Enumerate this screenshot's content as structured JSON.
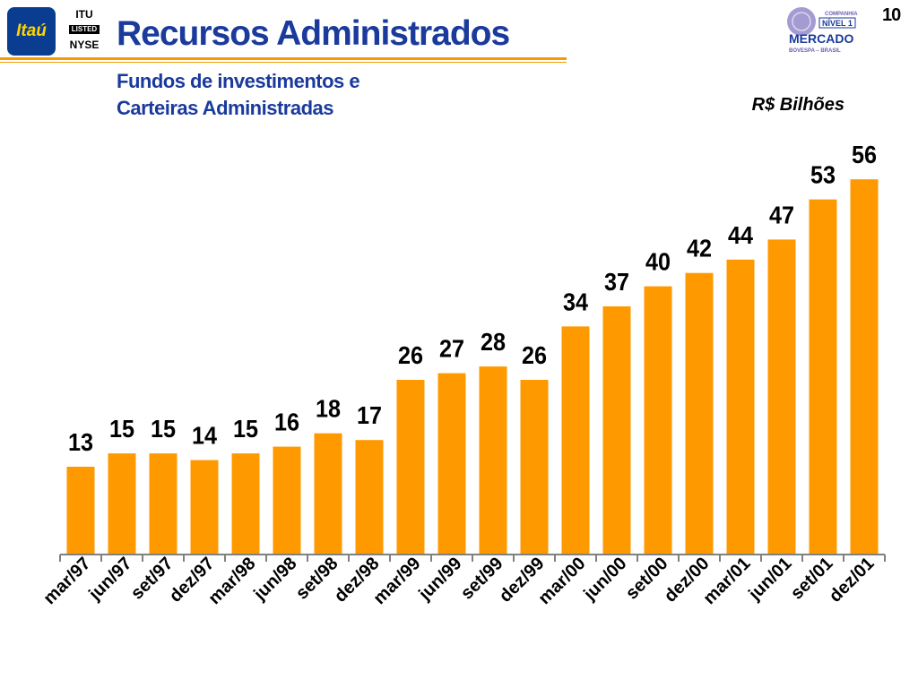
{
  "header": {
    "brand_logo_text": "Itaú",
    "listing_logo": {
      "line1": "ITU",
      "box": "LISTED",
      "line2": "NYSE"
    },
    "title": "Recursos Administrados",
    "subtitle_line1": "Fundos de investimentos e",
    "subtitle_line2": "Carteiras Administradas",
    "page_number": "10",
    "mercado_logo": {
      "line_top": "COMPANHIA",
      "nivel": "NÍVEL 1",
      "mercado": "MERCADO",
      "bovespa": "BOVESPA – BRASIL"
    }
  },
  "colors": {
    "accent": "#f39b00",
    "bar": "#ff9900",
    "title": "#1a3a9c"
  },
  "chart_data": {
    "type": "bar",
    "unit_label": "R$ Bilhões",
    "categories": [
      "mar/97",
      "jun/97",
      "set/97",
      "dez/97",
      "mar/98",
      "jun/98",
      "set/98",
      "dez/98",
      "mar/99",
      "jun/99",
      "set/99",
      "dez/99",
      "mar/00",
      "jun/00",
      "set/00",
      "dez/00",
      "mar/01",
      "jun/01",
      "set/01",
      "dez/01"
    ],
    "values": [
      13,
      15,
      15,
      14,
      15,
      16,
      18,
      17,
      26,
      27,
      28,
      26,
      34,
      37,
      40,
      42,
      44,
      47,
      53,
      56
    ],
    "value_labels": [
      "13",
      "15",
      "15",
      "14",
      "15",
      "16",
      "18",
      "17",
      "26",
      "27",
      "28",
      "26",
      "34",
      "37",
      "40",
      "42",
      "44",
      "47",
      "53",
      "56"
    ],
    "ylim": [
      0,
      60
    ],
    "grid": false,
    "legend": "none"
  }
}
